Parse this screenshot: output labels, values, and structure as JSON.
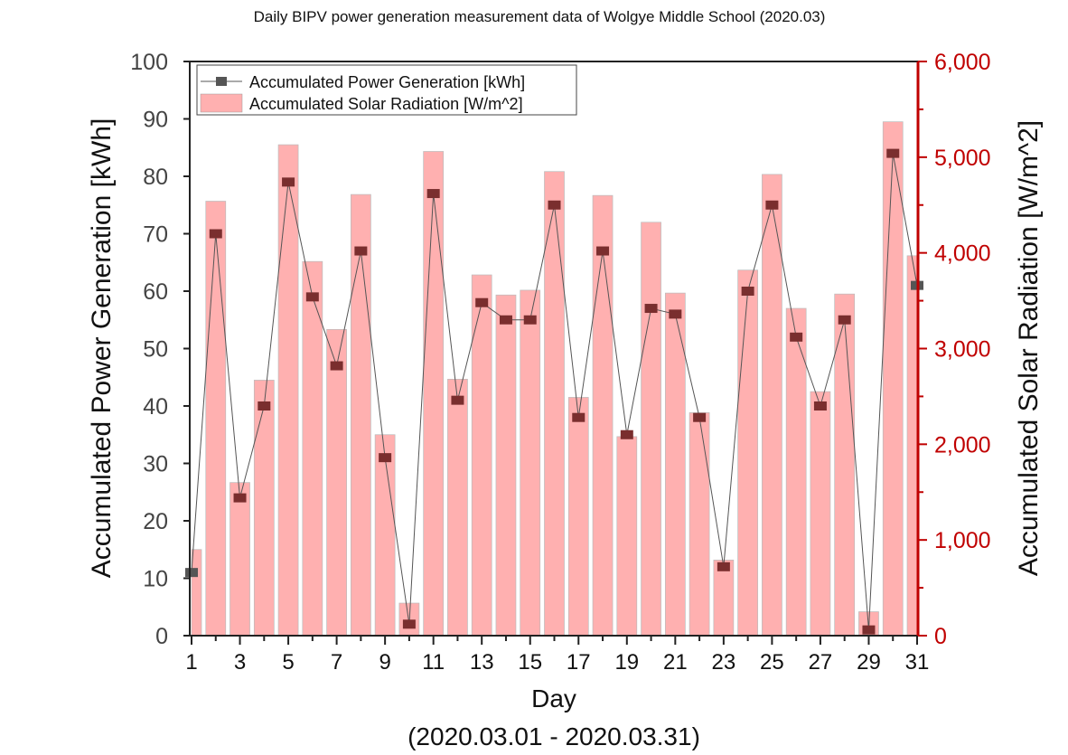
{
  "chart_data": {
    "type": "bar+line",
    "title": "Daily BIPV power generation measurement data of Wolgye Middle School (2020.03)",
    "xlabel": "Day",
    "xlabel_sub": "(2020.03.01 - 2020.03.31)",
    "ylabel_left": "Accumulated Power Generation [kWh]",
    "ylabel_right": "Accumulated Solar Radiation [W/m^2]",
    "x": [
      1,
      2,
      3,
      4,
      5,
      6,
      7,
      8,
      9,
      10,
      11,
      12,
      13,
      14,
      15,
      16,
      17,
      18,
      19,
      20,
      21,
      22,
      23,
      24,
      25,
      26,
      27,
      28,
      29,
      30,
      31
    ],
    "xticks": [
      "1",
      "3",
      "5",
      "7",
      "9",
      "11",
      "13",
      "15",
      "17",
      "19",
      "21",
      "23",
      "25",
      "27",
      "29",
      "31"
    ],
    "ylim_left": [
      0,
      100
    ],
    "yticks_left": [
      "0",
      "10",
      "20",
      "30",
      "40",
      "50",
      "60",
      "70",
      "80",
      "90",
      "100"
    ],
    "ylim_right": [
      0,
      6000
    ],
    "yticks_right": [
      "0",
      "1,000",
      "2,000",
      "3,000",
      "4,000",
      "5,000",
      "6,000"
    ],
    "legend_position": "top-left",
    "series": [
      {
        "name": "Accumulated Power Generation [kWh]",
        "type": "line",
        "axis": "left",
        "color": "#7a2e2e",
        "values": [
          11,
          70,
          24,
          40,
          79,
          59,
          47,
          67,
          31,
          2,
          77,
          41,
          58,
          55,
          55,
          75,
          38,
          67,
          35,
          57,
          56,
          38,
          12,
          60,
          75,
          52,
          40,
          55,
          1,
          84,
          61
        ]
      },
      {
        "name": "Accumulated Solar Radiation [W/m^2]",
        "type": "bar",
        "axis": "right",
        "color": "#ffb0b0",
        "values": [
          900,
          4540,
          1600,
          2670,
          5130,
          3910,
          3200,
          4610,
          2100,
          340,
          5060,
          2680,
          3770,
          3560,
          3610,
          4850,
          2490,
          4600,
          2080,
          4320,
          3580,
          2330,
          790,
          3820,
          4820,
          3420,
          2550,
          3570,
          250,
          5370,
          3970
        ]
      }
    ],
    "right_axis_color": "#c00000"
  }
}
